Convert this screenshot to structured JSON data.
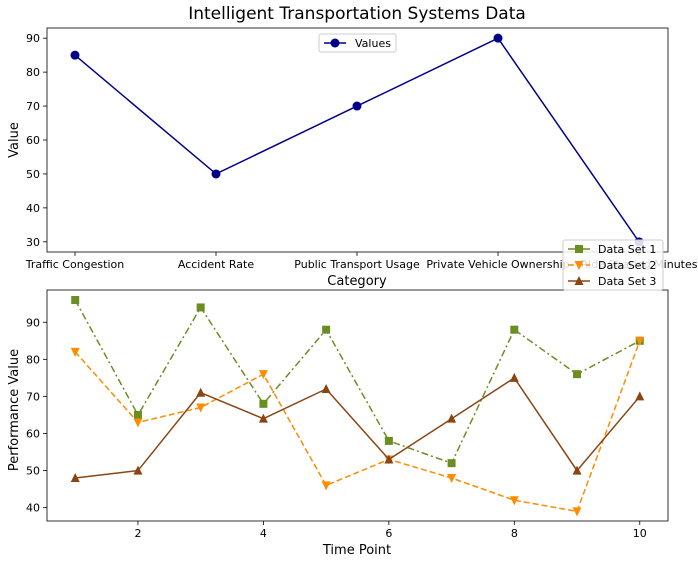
{
  "chart_data": [
    {
      "type": "line",
      "title": "Intelligent Transportation Systems Data",
      "xlabel": "Category",
      "ylabel": "Value",
      "categories": [
        "Traffic Congestion",
        "Accident Rate",
        "Public Transport Usage",
        "Private Vehicle Ownership",
        "Ride Sharing Minutes"
      ],
      "series": [
        {
          "name": "Values",
          "values": [
            85,
            50,
            70,
            90,
            30
          ],
          "color": "#00008b",
          "marker": "circle",
          "linestyle": "solid"
        }
      ],
      "ylim": [
        27,
        93
      ],
      "yticks": [
        30,
        40,
        50,
        60,
        70,
        80,
        90
      ],
      "legend": "top-center",
      "grid": false
    },
    {
      "type": "line",
      "xlabel": "Time Point",
      "ylabel": "Performance Value",
      "x": [
        1,
        2,
        3,
        4,
        5,
        6,
        7,
        8,
        9,
        10
      ],
      "series": [
        {
          "name": "Data Set 1",
          "values": [
            96,
            65,
            94,
            68,
            88,
            58,
            52,
            88,
            76,
            85
          ],
          "color": "#6b8e23",
          "marker": "square",
          "linestyle": "dashdot"
        },
        {
          "name": "Data Set 2",
          "values": [
            82,
            63,
            67,
            76,
            46,
            53,
            48,
            42,
            39,
            85
          ],
          "color": "#ff8c00",
          "marker": "triangle-down",
          "linestyle": "dashed"
        },
        {
          "name": "Data Set 3",
          "values": [
            48,
            50,
            71,
            64,
            72,
            53,
            64,
            75,
            50,
            70
          ],
          "color": "#8b4513",
          "marker": "triangle-up",
          "linestyle": "solid"
        }
      ],
      "xlim": [
        0.55,
        10.45
      ],
      "ylim": [
        36.4,
        98.7
      ],
      "xticks": [
        2,
        4,
        6,
        8,
        10
      ],
      "yticks": [
        40,
        50,
        60,
        70,
        80,
        90
      ],
      "legend": "top-right",
      "grid": false
    }
  ]
}
